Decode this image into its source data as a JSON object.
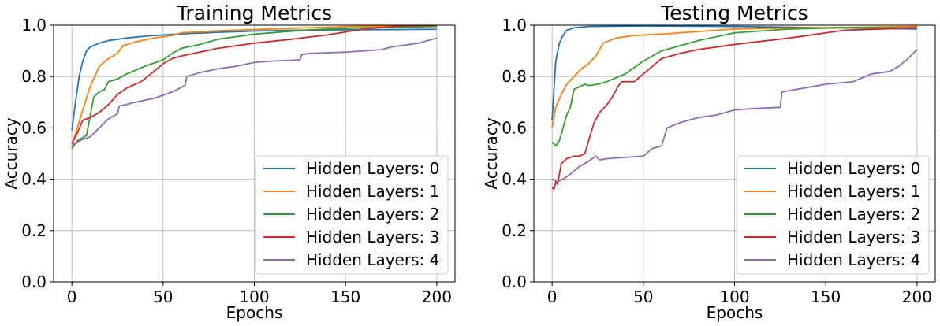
{
  "chart_data": [
    {
      "type": "line",
      "title": "Training Metrics",
      "xlabel": "Epochs",
      "ylabel": "Accuracy",
      "xlim": [
        -10,
        210
      ],
      "ylim": [
        0.0,
        1.0
      ],
      "xticks": [
        0,
        50,
        100,
        150,
        200
      ],
      "xtick_labels": [
        "0",
        "50",
        "100",
        "150",
        "200"
      ],
      "yticks": [
        0.0,
        0.2,
        0.4,
        0.6,
        0.8,
        1.0
      ],
      "ytick_labels": [
        "0.0",
        "0.2",
        "0.4",
        "0.6",
        "0.8",
        "1.0"
      ],
      "grid": true,
      "legend_position": "bottom-right",
      "series": [
        {
          "name": "Hidden Layers: 0",
          "color": "#1f77b4",
          "x": [
            0,
            2,
            4,
            6,
            8,
            10,
            15,
            20,
            30,
            40,
            50,
            60,
            80,
            100,
            120,
            150,
            180,
            200
          ],
          "y": [
            0.59,
            0.7,
            0.8,
            0.86,
            0.9,
            0.915,
            0.93,
            0.94,
            0.95,
            0.957,
            0.962,
            0.966,
            0.972,
            0.977,
            0.98,
            0.982,
            0.983,
            0.984
          ]
        },
        {
          "name": "Hidden Layers: 1",
          "color": "#ff7f0e",
          "x": [
            0,
            3,
            6,
            10,
            15,
            20,
            25,
            28,
            35,
            45,
            55,
            60,
            80,
            100,
            130,
            160,
            200
          ],
          "y": [
            0.53,
            0.6,
            0.67,
            0.76,
            0.84,
            0.87,
            0.89,
            0.92,
            0.935,
            0.95,
            0.96,
            0.97,
            0.978,
            0.983,
            0.99,
            0.996,
            0.998
          ]
        },
        {
          "name": "Hidden Layers: 2",
          "color": "#2ca02c",
          "x": [
            0,
            3,
            8,
            12,
            15,
            18,
            20,
            25,
            30,
            40,
            50,
            55,
            60,
            70,
            80,
            100,
            130,
            160,
            200
          ],
          "y": [
            0.52,
            0.55,
            0.57,
            0.72,
            0.74,
            0.75,
            0.78,
            0.79,
            0.81,
            0.84,
            0.865,
            0.89,
            0.91,
            0.925,
            0.945,
            0.965,
            0.982,
            0.99,
            0.995
          ]
        },
        {
          "name": "Hidden Layers: 3",
          "color": "#d62728",
          "x": [
            0,
            3,
            6,
            10,
            15,
            20,
            25,
            30,
            38,
            45,
            50,
            55,
            60,
            70,
            80,
            100,
            120,
            140,
            160,
            180,
            200
          ],
          "y": [
            0.54,
            0.58,
            0.63,
            0.64,
            0.66,
            0.69,
            0.73,
            0.755,
            0.78,
            0.82,
            0.85,
            0.87,
            0.88,
            0.895,
            0.91,
            0.93,
            0.945,
            0.962,
            0.985,
            0.997,
            1.0
          ]
        },
        {
          "name": "Hidden Layers: 4",
          "color": "#9467bd",
          "x": [
            0,
            3,
            6,
            10,
            15,
            20,
            25,
            26,
            35,
            45,
            55,
            62,
            63,
            70,
            80,
            90,
            100,
            110,
            125,
            126,
            130,
            150,
            170,
            175,
            190,
            200
          ],
          "y": [
            0.535,
            0.545,
            0.555,
            0.565,
            0.6,
            0.635,
            0.655,
            0.685,
            0.7,
            0.715,
            0.74,
            0.765,
            0.8,
            0.815,
            0.83,
            0.84,
            0.855,
            0.86,
            0.865,
            0.885,
            0.89,
            0.895,
            0.905,
            0.915,
            0.93,
            0.95
          ]
        }
      ]
    },
    {
      "type": "line",
      "title": "Testing Metrics",
      "xlabel": "Epochs",
      "ylabel": "Accuracy",
      "xlim": [
        -10,
        210
      ],
      "ylim": [
        0.0,
        1.0
      ],
      "xticks": [
        0,
        50,
        100,
        150,
        200
      ],
      "xtick_labels": [
        "0",
        "50",
        "100",
        "150",
        "200"
      ],
      "yticks": [
        0.0,
        0.2,
        0.4,
        0.6,
        0.8,
        1.0
      ],
      "ytick_labels": [
        "0.0",
        "0.2",
        "0.4",
        "0.6",
        "0.8",
        "1.0"
      ],
      "grid": true,
      "legend_position": "bottom-right",
      "series": [
        {
          "name": "Hidden Layers: 0",
          "color": "#1f77b4",
          "x": [
            0,
            1,
            2,
            4,
            6,
            8,
            12,
            20,
            50,
            100,
            150,
            200
          ],
          "y": [
            0.63,
            0.75,
            0.86,
            0.93,
            0.96,
            0.98,
            0.99,
            0.995,
            0.997,
            0.995,
            0.99,
            0.985
          ]
        },
        {
          "name": "Hidden Layers: 1",
          "color": "#ff7f0e",
          "x": [
            0,
            2,
            5,
            8,
            12,
            16,
            20,
            24,
            28,
            35,
            45,
            60,
            80,
            100,
            140,
            200
          ],
          "y": [
            0.6,
            0.68,
            0.73,
            0.77,
            0.8,
            0.83,
            0.85,
            0.88,
            0.93,
            0.95,
            0.96,
            0.965,
            0.975,
            0.985,
            0.99,
            0.995
          ]
        },
        {
          "name": "Hidden Layers: 2",
          "color": "#2ca02c",
          "x": [
            0,
            2,
            4,
            6,
            8,
            10,
            12,
            15,
            18,
            20,
            25,
            30,
            40,
            50,
            60,
            70,
            80,
            100,
            130,
            160,
            200
          ],
          "y": [
            0.545,
            0.53,
            0.55,
            0.6,
            0.65,
            0.68,
            0.75,
            0.76,
            0.77,
            0.765,
            0.77,
            0.78,
            0.81,
            0.86,
            0.9,
            0.92,
            0.94,
            0.97,
            0.985,
            0.99,
            0.99
          ]
        },
        {
          "name": "Hidden Layers: 3",
          "color": "#d62728",
          "x": [
            0,
            1,
            2,
            3,
            5,
            8,
            12,
            15,
            18,
            20,
            23,
            26,
            30,
            33,
            36,
            38,
            45,
            50,
            55,
            60,
            70,
            80,
            100,
            130,
            160,
            200
          ],
          "y": [
            0.37,
            0.36,
            0.39,
            0.38,
            0.46,
            0.48,
            0.49,
            0.49,
            0.5,
            0.55,
            0.62,
            0.66,
            0.69,
            0.72,
            0.76,
            0.78,
            0.78,
            0.81,
            0.84,
            0.87,
            0.89,
            0.905,
            0.925,
            0.95,
            0.98,
            0.99
          ]
        },
        {
          "name": "Hidden Layers: 4",
          "color": "#9467bd",
          "x": [
            0,
            3,
            6,
            10,
            15,
            20,
            24,
            26,
            30,
            40,
            50,
            55,
            60,
            63,
            70,
            80,
            90,
            100,
            110,
            125,
            126,
            150,
            165,
            175,
            185,
            190,
            195,
            200
          ],
          "y": [
            0.4,
            0.39,
            0.4,
            0.42,
            0.45,
            0.47,
            0.49,
            0.475,
            0.48,
            0.485,
            0.49,
            0.52,
            0.53,
            0.6,
            0.62,
            0.64,
            0.65,
            0.67,
            0.675,
            0.68,
            0.74,
            0.77,
            0.78,
            0.81,
            0.82,
            0.84,
            0.87,
            0.905
          ]
        }
      ]
    }
  ]
}
